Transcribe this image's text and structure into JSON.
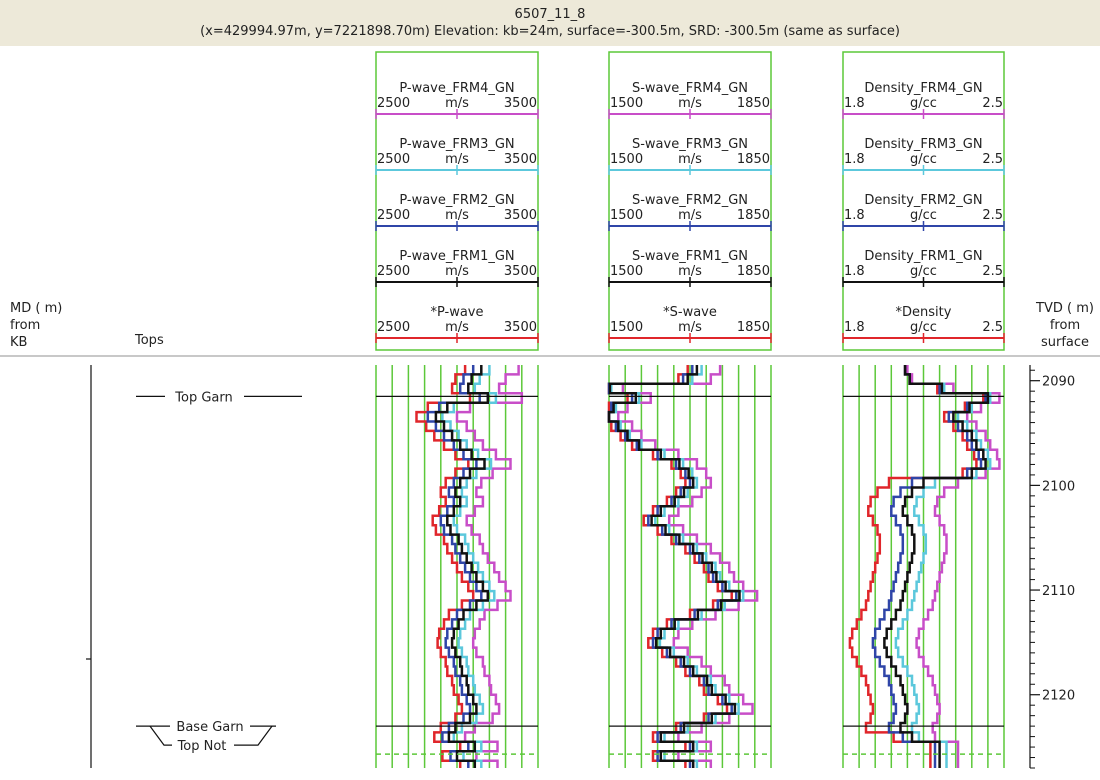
{
  "well": {
    "name": "6507_11_8",
    "info": "(x=429994.97m, y=7221898.70m) Elevation: kb=24m, surface=-300.5m, SRD: -300.5m (same as surface)"
  },
  "left_header": {
    "md_line1": "MD ( m)",
    "md_line2": "from",
    "md_line3": "KB",
    "tops_label": "Tops"
  },
  "right_header": {
    "line1": "TVD ( m)",
    "line2": "from",
    "line3": "surface"
  },
  "colors": {
    "grid": "#5cc839",
    "frm4": "#c84ec8",
    "frm3": "#5cc8dc",
    "frm2": "#2f45a8",
    "frm1": "#111111",
    "original": "#e0262b"
  },
  "chart_data": {
    "type": "line",
    "depth_axis": {
      "label": "TVD ( m) from surface",
      "ticks": [
        2090,
        2100,
        2110,
        2120
      ],
      "range": [
        2088.5,
        2127
      ]
    },
    "tops": [
      {
        "name": "Top Garn",
        "depth": 2091.5
      },
      {
        "name": "Base Garn",
        "depth": 2123
      },
      {
        "name": "Top Not",
        "depth": 2123
      }
    ],
    "tracks": [
      {
        "key": "pwave",
        "headers": [
          {
            "name": "P-wave_FRM4_GN",
            "min": "2500",
            "unit": "m/s",
            "max": "3500",
            "color": "frm4"
          },
          {
            "name": "P-wave_FRM3_GN",
            "min": "2500",
            "unit": "m/s",
            "max": "3500",
            "color": "frm3"
          },
          {
            "name": "P-wave_FRM2_GN",
            "min": "2500",
            "unit": "m/s",
            "max": "3500",
            "color": "frm2"
          },
          {
            "name": "P-wave_FRM1_GN",
            "min": "2500",
            "unit": "m/s",
            "max": "3500",
            "color": "frm1"
          },
          {
            "name": "*P-wave",
            "min": "2500",
            "unit": "m/s",
            "max": "3500",
            "color": "original"
          }
        ],
        "range": [
          2500,
          3500
        ],
        "depths": [
          2088.5,
          2089.4,
          2090.3,
          2091.2,
          2092.1,
          2093,
          2093.9,
          2094.8,
          2095.7,
          2096.6,
          2097.5,
          2098.4,
          2099.3,
          2100.2,
          2101.1,
          2102,
          2102.9,
          2103.8,
          2104.7,
          2105.6,
          2106.5,
          2107.4,
          2108.3,
          2109.2,
          2110.1,
          2111,
          2111.9,
          2112.8,
          2113.7,
          2114.6,
          2115.5,
          2116.4,
          2117.3,
          2118.2,
          2119.1,
          2120,
          2120.9,
          2121.8,
          2122.7,
          2123.6,
          2124.5,
          2125.4,
          2126.3
        ],
        "series": {
          "frm4": [
            3380,
            3300,
            3260,
            3400,
            3080,
            3000,
            3060,
            3110,
            3160,
            3240,
            3330,
            3220,
            3150,
            3120,
            3160,
            3110,
            3060,
            3090,
            3140,
            3160,
            3190,
            3230,
            3260,
            3300,
            3330,
            3250,
            3170,
            3140,
            3110,
            3100,
            3120,
            3160,
            3170,
            3200,
            3210,
            3240,
            3260,
            3220,
            3110,
            3050,
            3250,
            3120,
            3250
          ],
          "frm3": [
            3200,
            3140,
            3110,
            3240,
            2980,
            2910,
            2960,
            3010,
            3060,
            3130,
            3210,
            3120,
            3060,
            3030,
            3060,
            3020,
            2980,
            3000,
            3050,
            3070,
            3100,
            3130,
            3160,
            3200,
            3230,
            3160,
            3080,
            3050,
            3020,
            3010,
            3030,
            3060,
            3070,
            3100,
            3110,
            3140,
            3160,
            3120,
            3030,
            2980,
            3150,
            3040,
            3150
          ],
          "frm2": [
            3100,
            3040,
            3020,
            3140,
            2890,
            2820,
            2870,
            2920,
            2980,
            3040,
            3120,
            3040,
            2980,
            2950,
            2980,
            2940,
            2900,
            2920,
            2970,
            2990,
            3020,
            3050,
            3080,
            3120,
            3150,
            3080,
            3000,
            2970,
            2940,
            2930,
            2950,
            2980,
            2990,
            3020,
            3030,
            3060,
            3080,
            3040,
            2950,
            2910,
            3070,
            2960,
            3070
          ],
          "frm1": [
            3150,
            3090,
            3070,
            3190,
            2940,
            2870,
            2920,
            2970,
            3020,
            3090,
            3170,
            3080,
            3020,
            2990,
            3020,
            2980,
            2940,
            2960,
            3010,
            3030,
            3060,
            3090,
            3120,
            3160,
            3190,
            3120,
            3040,
            3010,
            2980,
            2970,
            2990,
            3020,
            3030,
            3060,
            3070,
            3100,
            3120,
            3080,
            2990,
            2950,
            3110,
            3000,
            3110
          ],
          "original": [
            3050,
            2990,
            2970,
            3080,
            2820,
            2750,
            2810,
            2860,
            2920,
            2990,
            3070,
            2990,
            2930,
            2900,
            2930,
            2890,
            2850,
            2870,
            2920,
            2940,
            2970,
            3000,
            3030,
            3070,
            3100,
            3030,
            2950,
            2920,
            2890,
            2880,
            2900,
            2930,
            2940,
            2970,
            2980,
            3010,
            3030,
            2990,
            2900,
            2860,
            3020,
            2910,
            3020
          ]
        }
      },
      {
        "key": "swave",
        "headers": [
          {
            "name": "S-wave_FRM4_GN",
            "min": "1500",
            "unit": "m/s",
            "max": "1850",
            "color": "frm4"
          },
          {
            "name": "S-wave_FRM3_GN",
            "min": "1500",
            "unit": "m/s",
            "max": "1850",
            "color": "frm3"
          },
          {
            "name": "S-wave_FRM2_GN",
            "min": "1500",
            "unit": "m/s",
            "max": "1850",
            "color": "frm2"
          },
          {
            "name": "S-wave_FRM1_GN",
            "min": "1500",
            "unit": "m/s",
            "max": "1850",
            "color": "frm1"
          },
          {
            "name": "*S-wave",
            "min": "1500",
            "unit": "m/s",
            "max": "1850",
            "color": "original"
          }
        ],
        "range": [
          1500,
          1850
        ],
        "depths": [
          2088.5,
          2089.4,
          2090.3,
          2091.2,
          2092.1,
          2093,
          2093.9,
          2094.8,
          2095.7,
          2096.6,
          2097.5,
          2098.4,
          2099.3,
          2100.2,
          2101.1,
          2102,
          2102.9,
          2103.8,
          2104.7,
          2105.6,
          2106.5,
          2107.4,
          2108.3,
          2109.2,
          2110.1,
          2111,
          2111.9,
          2112.8,
          2113.7,
          2114.6,
          2115.5,
          2116.4,
          2117.3,
          2118.2,
          2119.1,
          2120,
          2120.9,
          2121.8,
          2122.7,
          2123.6,
          2124.5,
          2125.4,
          2126.3
        ],
        "series": {
          "frm4": [
            1740,
            1720,
            1530,
            1590,
            1540,
            1520,
            1550,
            1570,
            1600,
            1650,
            1690,
            1710,
            1720,
            1700,
            1680,
            1650,
            1630,
            1660,
            1690,
            1720,
            1740,
            1760,
            1770,
            1790,
            1820,
            1780,
            1730,
            1680,
            1650,
            1640,
            1670,
            1700,
            1720,
            1750,
            1760,
            1790,
            1810,
            1760,
            1700,
            1650,
            1720,
            1650,
            1720
          ],
          "frm3": [
            1700,
            1680,
            1505,
            1565,
            1515,
            1500,
            1525,
            1545,
            1570,
            1620,
            1660,
            1680,
            1690,
            1670,
            1650,
            1620,
            1600,
            1630,
            1660,
            1690,
            1710,
            1730,
            1740,
            1760,
            1790,
            1750,
            1700,
            1650,
            1620,
            1610,
            1640,
            1670,
            1690,
            1720,
            1730,
            1760,
            1780,
            1730,
            1670,
            1620,
            1690,
            1620,
            1690
          ],
          "frm2": [
            1680,
            1660,
            1500,
            1550,
            1505,
            1500,
            1515,
            1535,
            1560,
            1605,
            1645,
            1665,
            1675,
            1655,
            1635,
            1605,
            1585,
            1615,
            1645,
            1675,
            1695,
            1715,
            1725,
            1745,
            1775,
            1735,
            1685,
            1635,
            1605,
            1595,
            1625,
            1655,
            1675,
            1705,
            1715,
            1745,
            1765,
            1715,
            1655,
            1605,
            1675,
            1605,
            1675
          ],
          "frm1": [
            1690,
            1670,
            1502,
            1558,
            1510,
            1500,
            1520,
            1540,
            1565,
            1612,
            1652,
            1672,
            1682,
            1662,
            1642,
            1612,
            1592,
            1622,
            1652,
            1682,
            1702,
            1722,
            1732,
            1752,
            1782,
            1742,
            1692,
            1642,
            1612,
            1602,
            1632,
            1662,
            1682,
            1712,
            1722,
            1752,
            1772,
            1722,
            1662,
            1612,
            1682,
            1612,
            1682
          ],
          "original": [
            1670,
            1650,
            1500,
            1540,
            1500,
            1500,
            1505,
            1525,
            1550,
            1595,
            1635,
            1655,
            1665,
            1645,
            1625,
            1595,
            1575,
            1605,
            1635,
            1665,
            1685,
            1705,
            1715,
            1735,
            1765,
            1725,
            1675,
            1625,
            1595,
            1585,
            1615,
            1645,
            1665,
            1695,
            1705,
            1735,
            1755,
            1705,
            1645,
            1595,
            1665,
            1595,
            1665
          ]
        }
      },
      {
        "key": "density",
        "headers": [
          {
            "name": "Density_FRM4_GN",
            "min": "1.8",
            "unit": "g/cc",
            "max": "2.5",
            "color": "frm4"
          },
          {
            "name": "Density_FRM3_GN",
            "min": "1.8",
            "unit": "g/cc",
            "max": "2.5",
            "color": "frm3"
          },
          {
            "name": "Density_FRM2_GN",
            "min": "1.8",
            "unit": "g/cc",
            "max": "2.5",
            "color": "frm2"
          },
          {
            "name": "Density_FRM1_GN",
            "min": "1.8",
            "unit": "g/cc",
            "max": "2.5",
            "color": "frm1"
          },
          {
            "name": "*Density",
            "min": "1.8",
            "unit": "g/cc",
            "max": "2.5",
            "color": "original"
          }
        ],
        "range": [
          1.8,
          2.5
        ],
        "depths": [
          2088.5,
          2089.4,
          2090.3,
          2091.2,
          2092.1,
          2093,
          2093.9,
          2094.8,
          2095.7,
          2096.6,
          2097.5,
          2098.4,
          2099.3,
          2100.2,
          2101.1,
          2102,
          2102.9,
          2103.8,
          2104.7,
          2105.6,
          2106.5,
          2107.4,
          2108.3,
          2109.2,
          2110.1,
          2111,
          2111.9,
          2112.8,
          2113.7,
          2114.6,
          2115.5,
          2116.4,
          2117.3,
          2118.2,
          2119.1,
          2120,
          2120.9,
          2121.8,
          2122.7,
          2123.6,
          2124.5,
          2125.4,
          2126.3
        ],
        "series": {
          "frm4": [
            2.08,
            2.1,
            2.28,
            2.48,
            2.4,
            2.34,
            2.38,
            2.42,
            2.44,
            2.47,
            2.48,
            2.42,
            2.3,
            2.24,
            2.21,
            2.2,
            2.22,
            2.24,
            2.25,
            2.25,
            2.24,
            2.23,
            2.22,
            2.21,
            2.2,
            2.19,
            2.17,
            2.15,
            2.13,
            2.12,
            2.13,
            2.15,
            2.17,
            2.19,
            2.2,
            2.21,
            2.22,
            2.21,
            2.19,
            2.2,
            2.3,
            2.3,
            2.3
          ],
          "frm3": [
            2.07,
            2.09,
            2.24,
            2.44,
            2.36,
            2.3,
            2.34,
            2.38,
            2.4,
            2.43,
            2.44,
            2.38,
            2.2,
            2.15,
            2.12,
            2.11,
            2.13,
            2.15,
            2.16,
            2.16,
            2.15,
            2.14,
            2.13,
            2.12,
            2.11,
            2.1,
            2.08,
            2.06,
            2.04,
            2.03,
            2.04,
            2.06,
            2.08,
            2.1,
            2.11,
            2.12,
            2.13,
            2.12,
            2.1,
            2.13,
            2.25,
            2.25,
            2.25
          ],
          "frm2": [
            2.07,
            2.09,
            2.22,
            2.42,
            2.34,
            2.26,
            2.3,
            2.34,
            2.36,
            2.39,
            2.4,
            2.34,
            2.1,
            2.05,
            2.02,
            2.01,
            2.03,
            2.05,
            2.06,
            2.06,
            2.05,
            2.04,
            2.03,
            2.02,
            2.01,
            2.0,
            1.98,
            1.96,
            1.94,
            1.93,
            1.94,
            1.96,
            1.98,
            2.0,
            2.01,
            2.02,
            2.03,
            2.02,
            2.0,
            2.06,
            2.2,
            2.2,
            2.2
          ],
          "frm1": [
            2.07,
            2.09,
            2.23,
            2.43,
            2.35,
            2.28,
            2.32,
            2.36,
            2.38,
            2.41,
            2.42,
            2.36,
            2.15,
            2.1,
            2.07,
            2.06,
            2.08,
            2.1,
            2.11,
            2.11,
            2.1,
            2.09,
            2.08,
            2.07,
            2.06,
            2.05,
            2.03,
            2.01,
            1.99,
            1.98,
            1.99,
            2.01,
            2.03,
            2.05,
            2.06,
            2.07,
            2.08,
            2.07,
            2.05,
            2.1,
            2.22,
            2.22,
            2.22
          ],
          "original": [
            2.07,
            2.09,
            2.21,
            2.41,
            2.33,
            2.24,
            2.28,
            2.32,
            2.34,
            2.37,
            2.38,
            2.32,
            2.0,
            1.95,
            1.92,
            1.91,
            1.93,
            1.95,
            1.96,
            1.96,
            1.95,
            1.94,
            1.93,
            1.92,
            1.91,
            1.9,
            1.88,
            1.86,
            1.84,
            1.83,
            1.84,
            1.86,
            1.88,
            1.9,
            1.91,
            1.92,
            1.93,
            1.92,
            1.9,
            2.02,
            2.18,
            2.18,
            2.18
          ]
        }
      }
    ]
  }
}
